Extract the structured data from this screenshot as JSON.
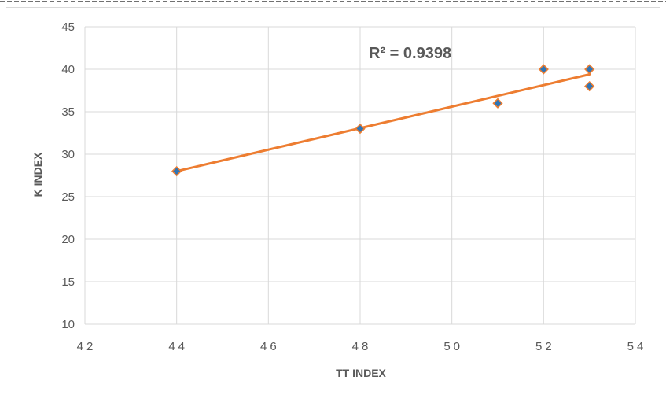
{
  "chart_data": {
    "type": "scatter",
    "title": "",
    "xlabel": "TT INDEX",
    "ylabel": "K INDEX",
    "xlim": [
      42,
      54
    ],
    "ylim": [
      10,
      45
    ],
    "x_ticks": [
      42,
      44,
      46,
      48,
      50,
      52,
      54
    ],
    "y_ticks": [
      10,
      15,
      20,
      25,
      30,
      35,
      40,
      45
    ],
    "grid": true,
    "legend": "none",
    "series": [
      {
        "marker": "diamond",
        "marker_fill": "#2e75b6",
        "marker_edge": "#ed7d31",
        "points": [
          {
            "x": 44,
            "y": 28
          },
          {
            "x": 48,
            "y": 33
          },
          {
            "x": 51,
            "y": 36
          },
          {
            "x": 52,
            "y": 40
          },
          {
            "x": 53,
            "y": 40
          },
          {
            "x": 53,
            "y": 38
          }
        ]
      }
    ],
    "trendline": {
      "type": "linear",
      "color": "#ed7d31",
      "x_start": 44,
      "y_start": 28.0,
      "x_end": 53,
      "y_end": 39.4
    },
    "annotations": [
      {
        "text": "R² = 0.9398"
      }
    ]
  }
}
